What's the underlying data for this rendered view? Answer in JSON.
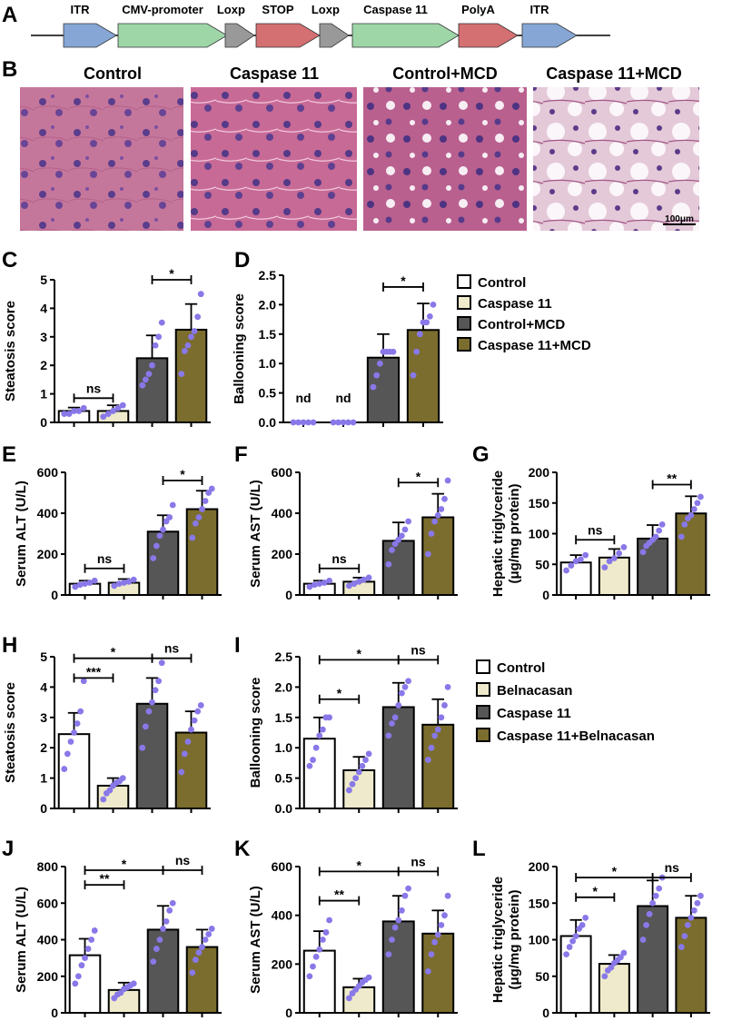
{
  "panel_letters": [
    "A",
    "B",
    "C",
    "D",
    "E",
    "F",
    "G",
    "H",
    "I",
    "J",
    "K",
    "L"
  ],
  "construct": {
    "elements": [
      {
        "label": "ITR",
        "color": "#86a7d6"
      },
      {
        "label": "CMV-promoter",
        "color": "#9ed6a8"
      },
      {
        "label": "Loxp",
        "color": "#999999"
      },
      {
        "label": "STOP",
        "color": "#d46f72"
      },
      {
        "label": "Loxp",
        "color": "#999999"
      },
      {
        "label": "Caspase 11",
        "color": "#9ed6a8"
      },
      {
        "label": "PolyA",
        "color": "#d46f72"
      },
      {
        "label": "ITR",
        "color": "#86a7d6"
      }
    ]
  },
  "histology": {
    "titles": [
      "Control",
      "Caspase 11",
      "Control+MCD",
      "Caspase 11+MCD"
    ],
    "scale_bar": "100μm"
  },
  "legend1": {
    "entries": [
      {
        "label": "Control",
        "color": "#ffffff"
      },
      {
        "label": "Caspase 11",
        "color": "#eeeacb"
      },
      {
        "label": "Control+MCD",
        "color": "#565656"
      },
      {
        "label": "Caspase 11+MCD",
        "color": "#7b6d2e"
      }
    ]
  },
  "legend2": {
    "entries": [
      {
        "label": "Control",
        "color": "#ffffff"
      },
      {
        "label": "Belnacasan",
        "color": "#eeeacb"
      },
      {
        "label": "Caspase 11",
        "color": "#565656"
      },
      {
        "label": "Caspase 11+Belnacasan",
        "color": "#7b6d2e"
      }
    ]
  },
  "chart_data": [
    {
      "panel": "C",
      "type": "bar",
      "ylabel": "Steatosis score",
      "ylim": [
        0,
        5
      ],
      "yticks": [
        0,
        1,
        2,
        3,
        4,
        5
      ],
      "values": [
        0.4,
        0.4,
        2.25,
        3.25
      ],
      "errors": [
        0.12,
        0.2,
        0.8,
        0.9
      ],
      "points": [
        [
          0.3,
          0.3,
          0.4,
          0.4,
          0.5
        ],
        [
          0.2,
          0.3,
          0.4,
          0.5,
          0.6
        ],
        [
          1.3,
          1.5,
          1.7,
          2.0,
          2.7,
          3.0,
          3.5
        ],
        [
          1.7,
          2.5,
          2.7,
          3.0,
          3.2,
          3.7,
          4.5
        ]
      ],
      "bar_labels": [
        "",
        "",
        "",
        ""
      ],
      "sig": [
        {
          "a": 0,
          "b": 1,
          "text": "ns",
          "y": 0.85,
          "mode": "bracket"
        },
        {
          "a": 2,
          "b": 3,
          "text": "*",
          "y": 5.0,
          "mode": "bracket"
        }
      ]
    },
    {
      "panel": "D",
      "type": "bar",
      "ylabel": "Ballooning score",
      "ylim": [
        0,
        2.5
      ],
      "yticks": [
        0,
        0.5,
        1.0,
        1.5,
        2.0,
        2.5
      ],
      "values": [
        0,
        0,
        1.1,
        1.57
      ],
      "errors": [
        0,
        0,
        0.4,
        0.45
      ],
      "points": [
        [
          0,
          0,
          0,
          0,
          0
        ],
        [
          0,
          0,
          0,
          0,
          0
        ],
        [
          0.6,
          0.8,
          1.0,
          1.2,
          1.2,
          1.2,
          1.2
        ],
        [
          0.8,
          1.2,
          1.5,
          1.7,
          1.7,
          1.8,
          2.0
        ]
      ],
      "bar_labels": [
        "nd",
        "nd",
        "",
        ""
      ],
      "sig": [
        {
          "a": 2,
          "b": 3,
          "text": "*",
          "y": 2.3,
          "mode": "bracket"
        }
      ]
    },
    {
      "panel": "E",
      "type": "bar",
      "ylabel": "Serum ALT (U/L)",
      "ylim": [
        0,
        600
      ],
      "yticks": [
        0,
        200,
        400,
        600
      ],
      "values": [
        55,
        60,
        310,
        420
      ],
      "errors": [
        15,
        18,
        80,
        90
      ],
      "points": [
        [
          40,
          50,
          55,
          60,
          70
        ],
        [
          45,
          55,
          60,
          65,
          75
        ],
        [
          180,
          240,
          290,
          320,
          360,
          380,
          440
        ],
        [
          280,
          350,
          380,
          420,
          460,
          500,
          520
        ]
      ],
      "bar_labels": [
        "",
        "",
        "",
        ""
      ],
      "sig": [
        {
          "a": 0,
          "b": 1,
          "text": "ns",
          "y": 130,
          "mode": "bracket"
        },
        {
          "a": 2,
          "b": 3,
          "text": "*",
          "y": 560,
          "mode": "bracket"
        }
      ]
    },
    {
      "panel": "F",
      "type": "bar",
      "ylabel": "Serum AST (U/L)",
      "ylim": [
        0,
        600
      ],
      "yticks": [
        0,
        200,
        400,
        600
      ],
      "values": [
        55,
        65,
        265,
        380
      ],
      "errors": [
        15,
        20,
        90,
        115
      ],
      "points": [
        [
          40,
          50,
          55,
          60,
          70
        ],
        [
          45,
          55,
          65,
          75,
          85
        ],
        [
          150,
          220,
          250,
          270,
          290,
          320,
          360
        ],
        [
          200,
          300,
          360,
          390,
          420,
          470,
          560
        ]
      ],
      "bar_labels": [
        "",
        "",
        "",
        ""
      ],
      "sig": [
        {
          "a": 0,
          "b": 1,
          "text": "ns",
          "y": 130,
          "mode": "bracket"
        },
        {
          "a": 2,
          "b": 3,
          "text": "*",
          "y": 550,
          "mode": "bracket"
        }
      ]
    },
    {
      "panel": "G",
      "type": "bar",
      "ylabel": "Hepatic triglyceride",
      "ylabel2": "(μg/mg protein)",
      "ylim": [
        0,
        200
      ],
      "yticks": [
        0,
        50,
        100,
        150,
        200
      ],
      "values": [
        53,
        61,
        92,
        133
      ],
      "errors": [
        12,
        14,
        22,
        28
      ],
      "points": [
        [
          40,
          48,
          55,
          58,
          65
        ],
        [
          45,
          55,
          60,
          68,
          78
        ],
        [
          70,
          80,
          85,
          90,
          95,
          105,
          115
        ],
        [
          95,
          115,
          125,
          130,
          140,
          150,
          160
        ]
      ],
      "bar_labels": [
        "",
        "",
        "",
        ""
      ],
      "sig": [
        {
          "a": 0,
          "b": 1,
          "text": "ns",
          "y": 90,
          "mode": "bracket"
        },
        {
          "a": 2,
          "b": 3,
          "text": "**",
          "y": 180,
          "mode": "bracket"
        }
      ]
    },
    {
      "panel": "H",
      "type": "bar",
      "ylabel": "Steatosis score",
      "ylim": [
        0,
        5
      ],
      "yticks": [
        0,
        1,
        2,
        3,
        4,
        5
      ],
      "values": [
        2.45,
        0.75,
        3.45,
        2.5
      ],
      "errors": [
        0.7,
        0.25,
        0.85,
        0.7
      ],
      "points": [
        [
          1.3,
          1.8,
          2.2,
          2.5,
          2.8,
          3.2,
          4.2
        ],
        [
          0.3,
          0.5,
          0.6,
          0.75,
          0.85,
          0.9,
          1.0
        ],
        [
          2.0,
          2.7,
          3.2,
          3.5,
          3.9,
          4.2,
          4.8
        ],
        [
          1.2,
          1.8,
          2.2,
          2.6,
          2.9,
          3.2,
          3.4
        ]
      ],
      "bar_labels": [
        "",
        "",
        "",
        ""
      ],
      "sig": [
        {
          "a": 0,
          "b": 1,
          "text": "***",
          "y": 4.3,
          "mode": "bracket"
        },
        {
          "a": 0,
          "b": 2,
          "text": "*",
          "y": 4.95,
          "mode": "span"
        },
        {
          "a": 2,
          "b": 3,
          "text": "ns",
          "y": 4.95,
          "mode": "span"
        }
      ]
    },
    {
      "panel": "I",
      "type": "bar",
      "ylabel": "Ballooning score",
      "ylim": [
        0,
        2.5
      ],
      "yticks": [
        0,
        0.5,
        1.0,
        1.5,
        2.0,
        2.5
      ],
      "values": [
        1.15,
        0.63,
        1.67,
        1.38
      ],
      "errors": [
        0.35,
        0.22,
        0.4,
        0.42
      ],
      "points": [
        [
          0.7,
          0.8,
          1.0,
          1.2,
          1.3,
          1.5,
          1.5
        ],
        [
          0.3,
          0.4,
          0.5,
          0.6,
          0.7,
          0.8,
          0.9
        ],
        [
          1.2,
          1.4,
          1.5,
          1.7,
          1.9,
          2.0,
          2.1
        ],
        [
          0.8,
          1.0,
          1.2,
          1.3,
          1.5,
          1.7,
          2.0
        ]
      ],
      "bar_labels": [
        "",
        "",
        "",
        ""
      ],
      "sig": [
        {
          "a": 0,
          "b": 1,
          "text": "*",
          "y": 1.8,
          "mode": "bracket"
        },
        {
          "a": 0,
          "b": 2,
          "text": "*",
          "y": 2.45,
          "mode": "span"
        },
        {
          "a": 2,
          "b": 3,
          "text": "ns",
          "y": 2.45,
          "mode": "span"
        }
      ]
    },
    {
      "panel": "J",
      "type": "bar",
      "ylabel": "Serum ALT (U/L)",
      "ylim": [
        0,
        800
      ],
      "yticks": [
        0,
        200,
        400,
        600,
        800
      ],
      "values": [
        315,
        125,
        455,
        360
      ],
      "errors": [
        90,
        40,
        130,
        95
      ],
      "points": [
        [
          160,
          200,
          260,
          300,
          350,
          400,
          450
        ],
        [
          80,
          100,
          110,
          130,
          140,
          150,
          160
        ],
        [
          280,
          350,
          400,
          460,
          500,
          560,
          600
        ],
        [
          220,
          290,
          330,
          360,
          400,
          430,
          460
        ]
      ],
      "bar_labels": [
        "",
        "",
        "",
        ""
      ],
      "sig": [
        {
          "a": 0,
          "b": 1,
          "text": "**",
          "y": 700,
          "mode": "bracket"
        },
        {
          "a": 0,
          "b": 2,
          "text": "*",
          "y": 780,
          "mode": "span"
        },
        {
          "a": 2,
          "b": 3,
          "text": "ns",
          "y": 780,
          "mode": "span"
        }
      ]
    },
    {
      "panel": "K",
      "type": "bar",
      "ylabel": "Serum AST (U/L)",
      "ylim": [
        0,
        600
      ],
      "yticks": [
        0,
        200,
        400,
        600
      ],
      "values": [
        255,
        105,
        375,
        325
      ],
      "errors": [
        80,
        35,
        105,
        95
      ],
      "points": [
        [
          150,
          190,
          230,
          260,
          300,
          330,
          380
        ],
        [
          60,
          80,
          95,
          110,
          125,
          135,
          145
        ],
        [
          240,
          300,
          350,
          380,
          420,
          480,
          510
        ],
        [
          170,
          240,
          290,
          320,
          360,
          400,
          480
        ]
      ],
      "bar_labels": [
        "",
        "",
        "",
        ""
      ],
      "sig": [
        {
          "a": 0,
          "b": 1,
          "text": "**",
          "y": 460,
          "mode": "bracket"
        },
        {
          "a": 0,
          "b": 2,
          "text": "*",
          "y": 580,
          "mode": "span"
        },
        {
          "a": 2,
          "b": 3,
          "text": "ns",
          "y": 580,
          "mode": "span"
        }
      ]
    },
    {
      "panel": "L",
      "type": "bar",
      "ylabel": "Hepatic triglyceride",
      "ylabel2": "(μg/mg protein)",
      "ylim": [
        0,
        200
      ],
      "yticks": [
        0,
        50,
        100,
        150,
        200
      ],
      "values": [
        105,
        67,
        146,
        130
      ],
      "errors": [
        22,
        12,
        35,
        30
      ],
      "points": [
        [
          80,
          90,
          98,
          105,
          115,
          120,
          130
        ],
        [
          50,
          58,
          62,
          68,
          72,
          76,
          82
        ],
        [
          100,
          120,
          135,
          150,
          160,
          170,
          185
        ],
        [
          90,
          105,
          120,
          130,
          140,
          150,
          160
        ]
      ],
      "bar_labels": [
        "",
        "",
        "",
        ""
      ],
      "sig": [
        {
          "a": 0,
          "b": 1,
          "text": "*",
          "y": 158,
          "mode": "bracket"
        },
        {
          "a": 0,
          "b": 2,
          "text": "*",
          "y": 185,
          "mode": "span"
        },
        {
          "a": 2,
          "b": 3,
          "text": "ns",
          "y": 185,
          "mode": "span"
        }
      ]
    }
  ]
}
